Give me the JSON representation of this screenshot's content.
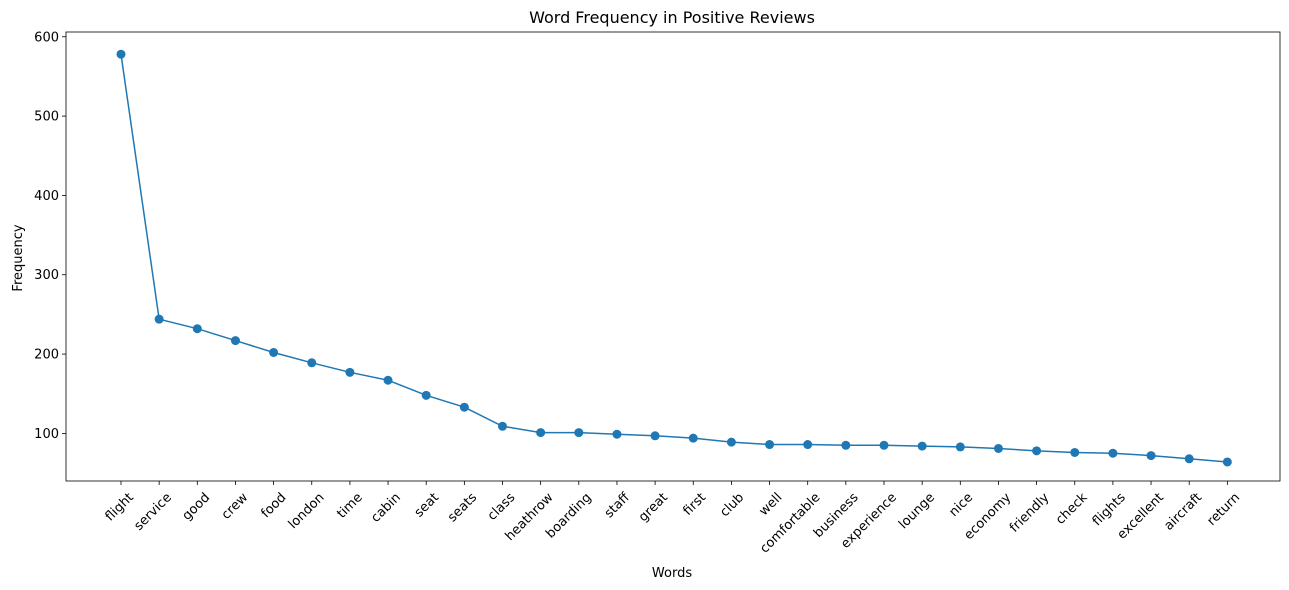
{
  "chart_data": {
    "type": "line",
    "title": "Word Frequency in Positive Reviews",
    "xlabel": "Words",
    "ylabel": "Frequency",
    "categories": [
      "flight",
      "service",
      "good",
      "crew",
      "food",
      "london",
      "time",
      "cabin",
      "seat",
      "seats",
      "class",
      "heathrow",
      "boarding",
      "staff",
      "great",
      "first",
      "club",
      "well",
      "comfortable",
      "business",
      "experience",
      "lounge",
      "nice",
      "economy",
      "friendly",
      "check",
      "flights",
      "excellent",
      "aircraft",
      "return"
    ],
    "series": [
      {
        "values": [
          578,
          244,
          232,
          217,
          202,
          189,
          177,
          167,
          148,
          133,
          109,
          101,
          101,
          99,
          97,
          94,
          89,
          86,
          86,
          85,
          85,
          84,
          83,
          81,
          78,
          76,
          75,
          72,
          68,
          64
        ],
        "color": "#1f77b4",
        "marker": "circle"
      }
    ],
    "y_ticks": [
      100,
      200,
      300,
      400,
      500,
      600
    ],
    "ylim": [
      40,
      606
    ],
    "grid": false,
    "legend": "none",
    "x_tick_rotation_deg": 45
  }
}
